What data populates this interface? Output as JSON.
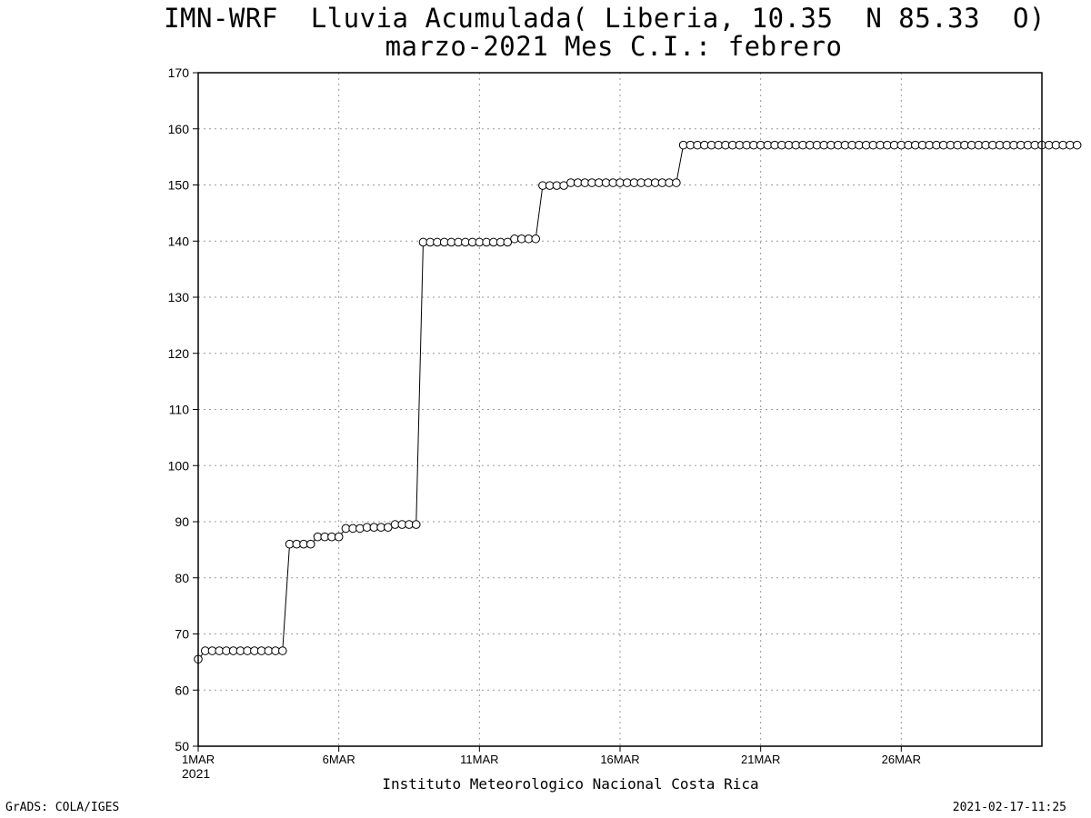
{
  "title_line1": "IMN-WRF  Lluvia Acumulada( Liberia, 10.35  N 85.33  O)",
  "title_line2": "marzo-2021 Mes C.I.: febrero",
  "credit": "Instituto Meteorologico Nacional Costa Rica",
  "footer_left": "GrADS: COLA/IGES",
  "footer_right": "2021-02-17-11:25",
  "chart_data": {
    "type": "line",
    "title": "IMN-WRF  Lluvia Acumulada( Liberia, 10.35  N 85.33  O)",
    "subtitle": "marzo-2021 Mes C.I.: febrero",
    "xlabel": "",
    "ylabel": "",
    "grid": true,
    "marker": "open-circle",
    "line_color": "#000000",
    "x_unit": "6-hour steps from 1MAR2021 00Z",
    "xlim": [
      0,
      120
    ],
    "ylim": [
      50,
      170
    ],
    "yticks": [
      50,
      60,
      70,
      80,
      90,
      100,
      110,
      120,
      130,
      140,
      150,
      160,
      170
    ],
    "xticks": [
      {
        "x": 0,
        "label": "1MAR",
        "label2": "2021"
      },
      {
        "x": 20,
        "label": "6MAR"
      },
      {
        "x": 40,
        "label": "11MAR"
      },
      {
        "x": 60,
        "label": "16MAR"
      },
      {
        "x": 80,
        "label": "21MAR"
      },
      {
        "x": 100,
        "label": "26MAR"
      }
    ],
    "values": [
      65.5,
      67,
      67,
      67,
      67,
      67,
      67,
      67,
      67,
      67,
      67,
      67,
      67,
      86,
      86,
      86,
      86,
      87.3,
      87.3,
      87.3,
      87.3,
      88.8,
      88.8,
      88.8,
      89,
      89,
      89,
      89,
      89.5,
      89.5,
      89.5,
      89.5,
      139.8,
      139.8,
      139.8,
      139.8,
      139.8,
      139.8,
      139.8,
      139.8,
      139.8,
      139.8,
      139.8,
      139.8,
      139.8,
      140.4,
      140.4,
      140.4,
      140.4,
      149.9,
      149.9,
      149.9,
      149.9,
      150.4,
      150.4,
      150.4,
      150.4,
      150.4,
      150.4,
      150.4,
      150.4,
      150.4,
      150.4,
      150.4,
      150.4,
      150.4,
      150.4,
      150.4,
      150.4,
      157.1,
      157.1,
      157.1,
      157.1,
      157.1,
      157.1,
      157.1,
      157.1,
      157.1,
      157.1,
      157.1,
      157.1,
      157.1,
      157.1,
      157.1,
      157.1,
      157.1,
      157.1,
      157.1,
      157.1,
      157.1,
      157.1,
      157.1,
      157.1,
      157.1,
      157.1,
      157.1,
      157.1,
      157.1,
      157.1,
      157.1,
      157.1,
      157.1,
      157.1,
      157.1,
      157.1,
      157.1,
      157.1,
      157.1,
      157.1,
      157.1,
      157.1,
      157.1,
      157.1,
      157.1,
      157.1,
      157.1,
      157.1,
      157.1,
      157.1,
      157.1,
      157.1,
      157.1,
      157.1,
      157.1,
      157.1,
      157.1
    ]
  }
}
